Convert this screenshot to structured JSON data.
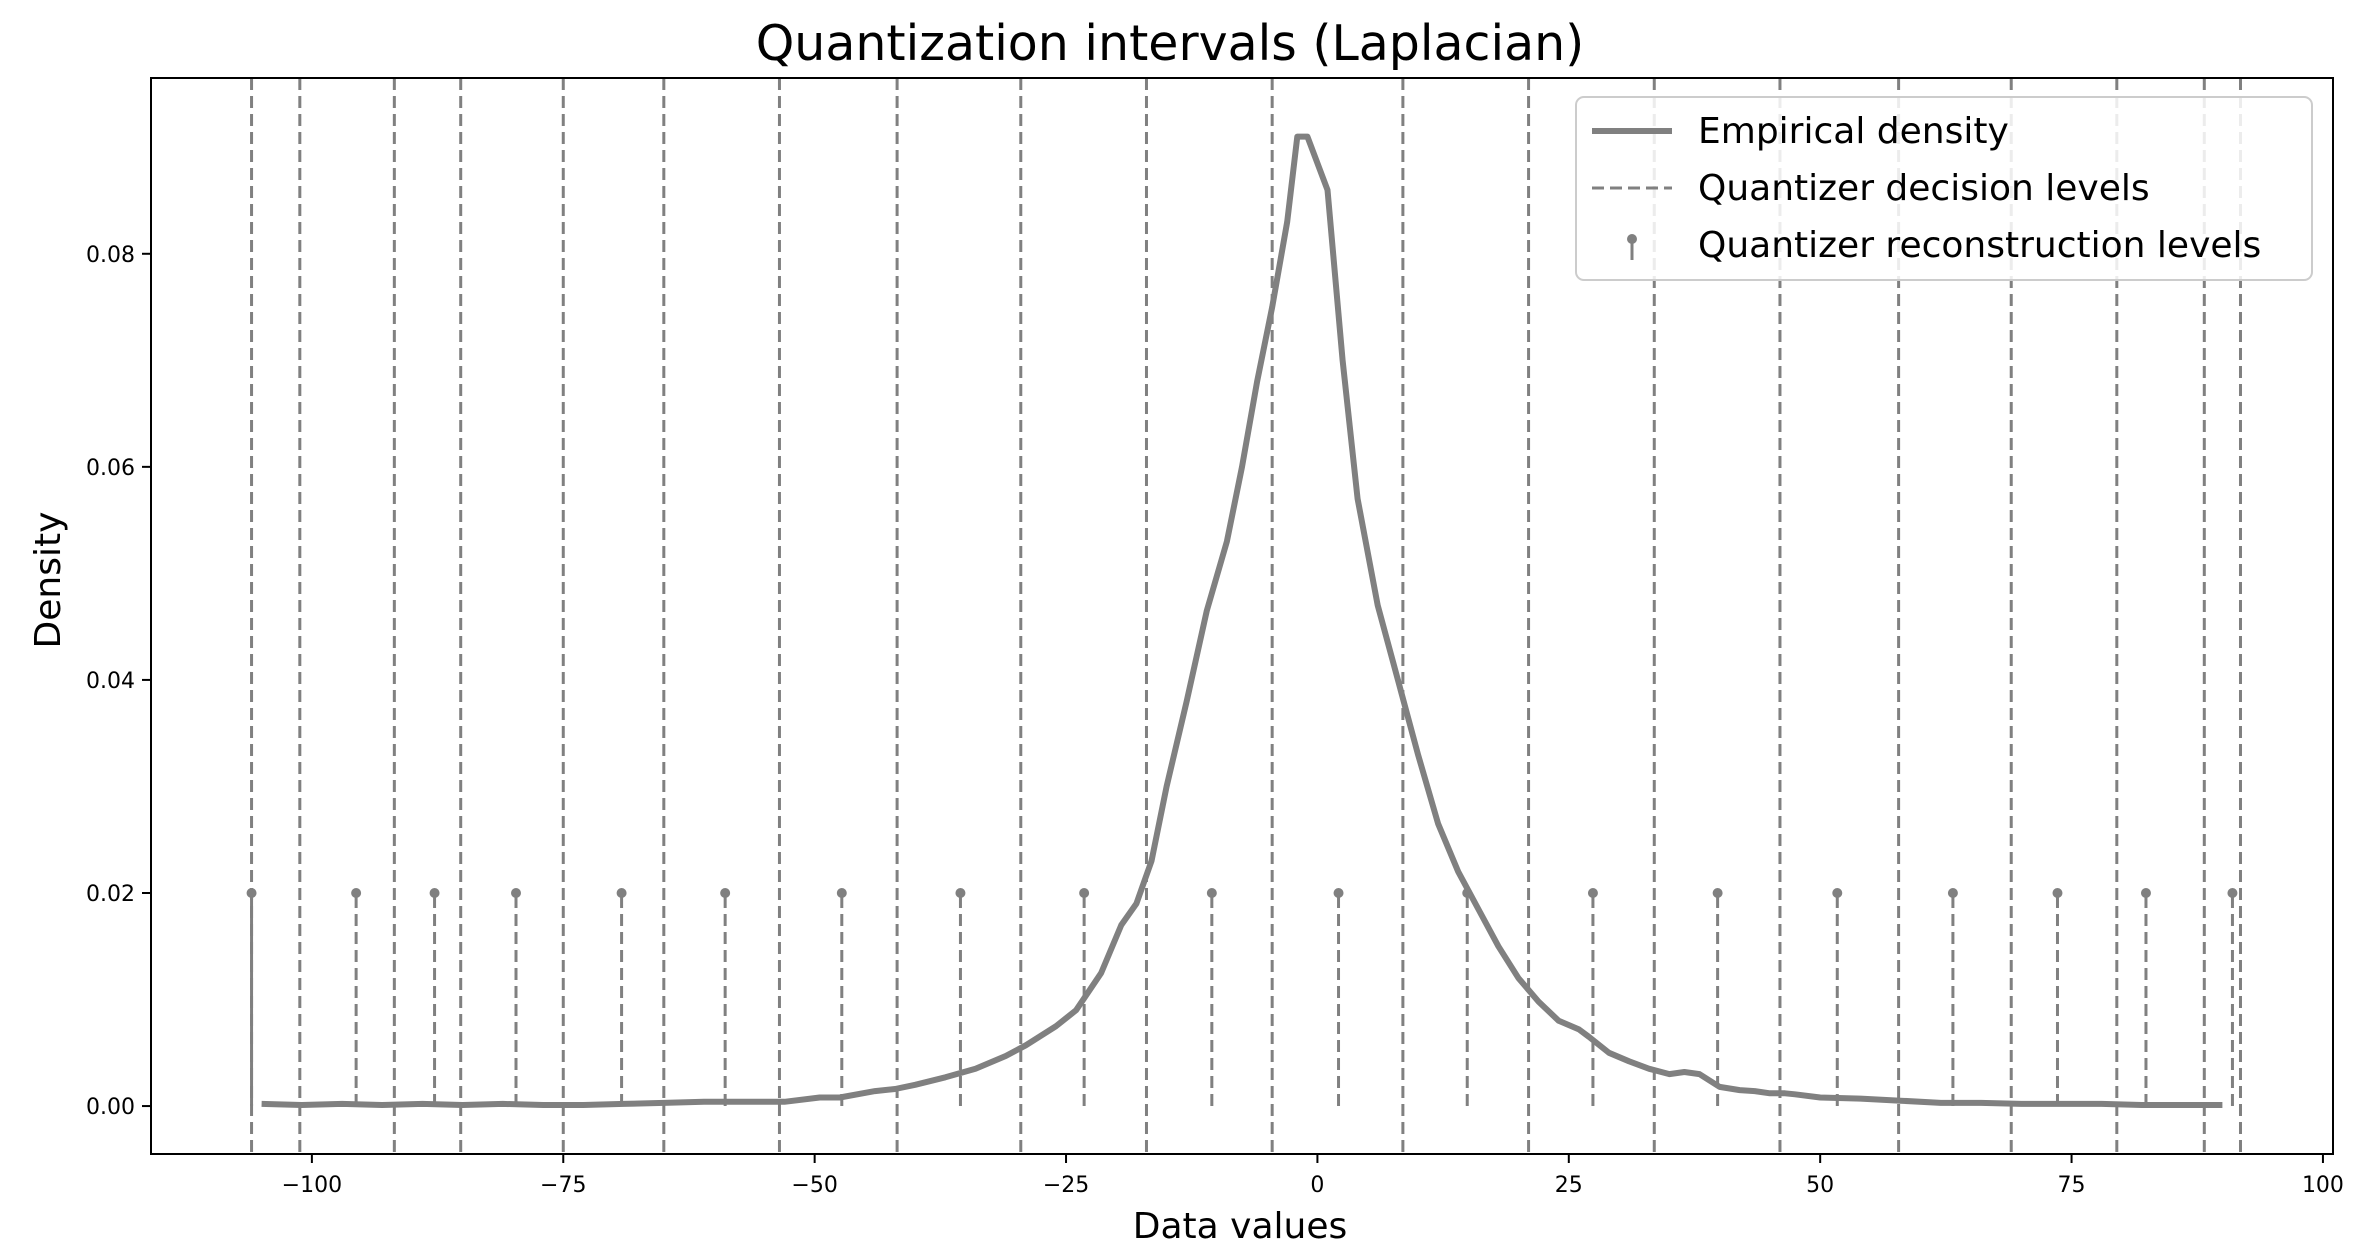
{
  "chart_data": {
    "type": "line",
    "title": "Quantization intervals (Laplacian)",
    "xlabel": "Data values",
    "ylabel": "Density",
    "xlim": [
      -116,
      101
    ],
    "ylim": [
      -0.0045,
      0.0965
    ],
    "x_ticks": [
      -100,
      -75,
      -50,
      -25,
      0,
      25,
      50,
      75,
      100
    ],
    "x_tick_labels": [
      "−100",
      "−75",
      "−50",
      "−25",
      "0",
      "25",
      "50",
      "75",
      "100"
    ],
    "y_ticks": [
      0.0,
      0.02,
      0.04,
      0.06,
      0.08
    ],
    "y_tick_labels": [
      "0.00",
      "0.02",
      "0.04",
      "0.06",
      "0.08"
    ],
    "grid": false,
    "legend_position": "top-right",
    "colors": {
      "series": "#808080",
      "axes": "#000000"
    },
    "legend": [
      {
        "label": "Empirical density",
        "kind": "line"
      },
      {
        "label": "Quantizer decision levels",
        "kind": "dashed"
      },
      {
        "label": "Quantizer reconstruction levels",
        "kind": "stem"
      }
    ],
    "series": [
      {
        "name": "Empirical density",
        "x": [
          -105,
          -101,
          -97,
          -93,
          -89,
          -85,
          -81,
          -77,
          -73,
          -69,
          -65,
          -61,
          -57,
          -53,
          -49.5,
          -47.5,
          -44,
          -42,
          -40,
          -37,
          -34,
          -31,
          -29,
          -26,
          -24,
          -21.5,
          -19.5,
          -18,
          -16.5,
          -15,
          -13,
          -11,
          -9,
          -7.5,
          -6,
          -4.5,
          -3,
          -2,
          -1,
          1,
          2.5,
          4,
          6,
          8,
          10,
          12,
          14,
          16,
          18,
          20,
          22,
          24,
          26,
          27,
          29,
          31,
          33,
          35,
          36.5,
          38,
          40,
          42,
          43.5,
          45,
          46.5,
          47.5,
          50,
          54,
          58,
          62,
          66,
          70,
          74,
          78,
          82,
          86,
          90
        ],
        "y": [
          0.0002,
          0.0001,
          0.0002,
          0.0001,
          0.0002,
          0.0001,
          0.0002,
          0.0001,
          0.0001,
          0.0002,
          0.0003,
          0.0004,
          0.0004,
          0.0004,
          0.0008,
          0.0008,
          0.0014,
          0.0016,
          0.002,
          0.0027,
          0.0035,
          0.0047,
          0.0057,
          0.0075,
          0.009,
          0.0125,
          0.017,
          0.019,
          0.023,
          0.03,
          0.038,
          0.0465,
          0.053,
          0.06,
          0.068,
          0.075,
          0.083,
          0.091,
          0.091,
          0.086,
          0.07,
          0.057,
          0.047,
          0.04,
          0.033,
          0.0265,
          0.022,
          0.0185,
          0.015,
          0.012,
          0.0098,
          0.008,
          0.0072,
          0.0065,
          0.005,
          0.0042,
          0.0035,
          0.003,
          0.0032,
          0.003,
          0.0018,
          0.0015,
          0.0014,
          0.0012,
          0.0012,
          0.0011,
          0.0008,
          0.0007,
          0.0005,
          0.0003,
          0.0003,
          0.0002,
          0.0002,
          0.0002,
          0.0001,
          0.0001,
          0.0001
        ]
      },
      {
        "name": "Quantizer decision levels",
        "x": [
          -106,
          -101.2,
          -91.8,
          -85.2,
          -75,
          -65,
          -53.5,
          -41.8,
          -29.5,
          -17,
          -4.5,
          8.5,
          21,
          33.5,
          46,
          57.8,
          69,
          79.5,
          88.2,
          91.8
        ]
      },
      {
        "name": "Quantizer reconstruction levels",
        "x": [
          -106,
          -95.6,
          -87.8,
          -79.7,
          -69.2,
          -58.9,
          -47.3,
          -35.5,
          -23.2,
          -10.5,
          2.1,
          14.9,
          27.4,
          39.8,
          51.7,
          63.2,
          73.6,
          82.4,
          91
        ],
        "y": [
          0.02,
          0.02,
          0.02,
          0.02,
          0.02,
          0.02,
          0.02,
          0.02,
          0.02,
          0.02,
          0.02,
          0.02,
          0.02,
          0.02,
          0.02,
          0.02,
          0.02,
          0.02,
          0.02
        ]
      }
    ]
  }
}
